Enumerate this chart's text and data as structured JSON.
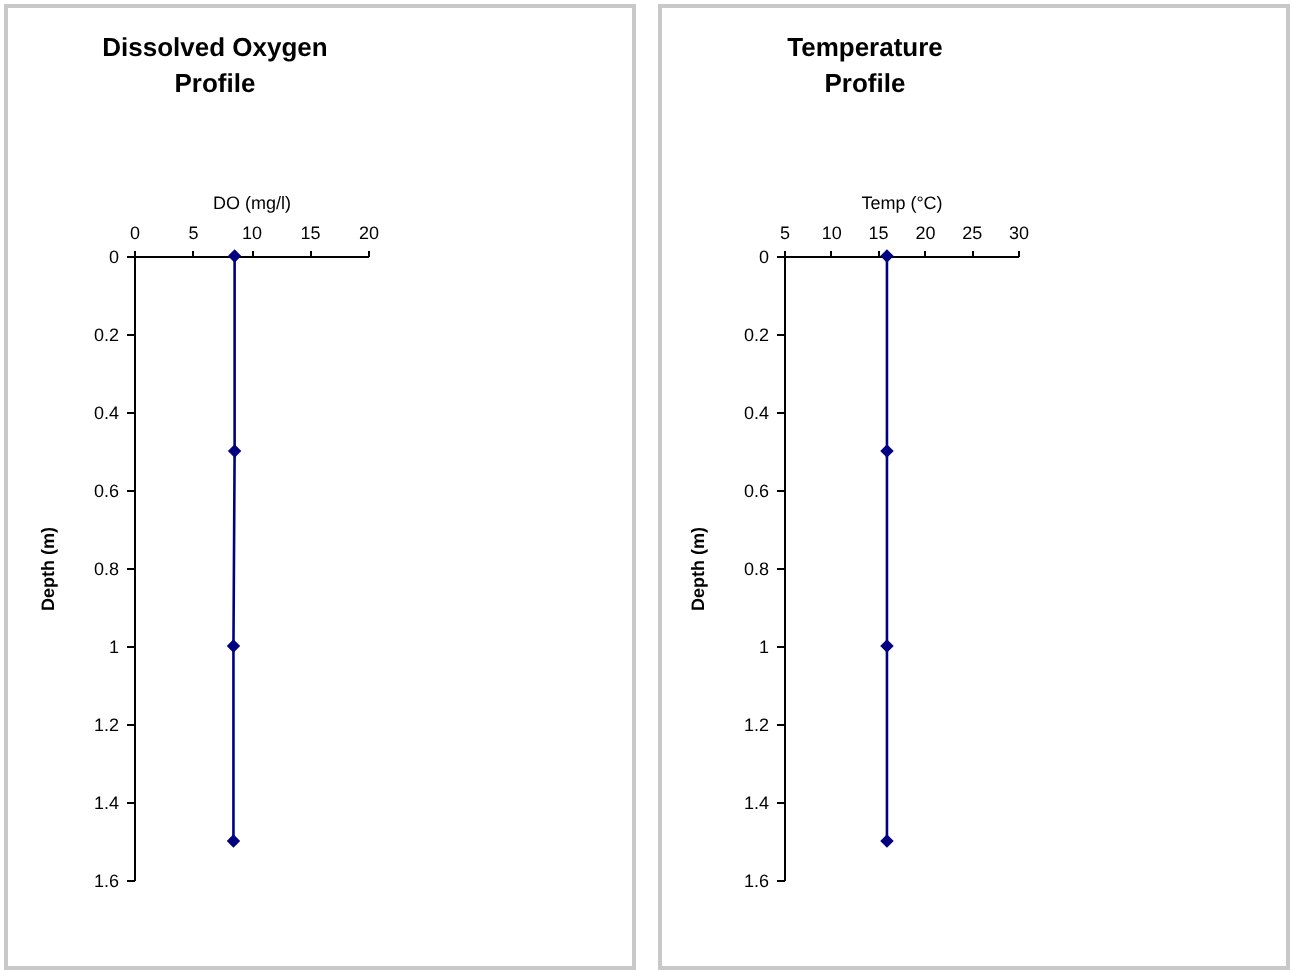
{
  "chart_data": [
    {
      "type": "line",
      "title": "Dissolved Oxygen Profile",
      "xlabel": "DO (mg/l)",
      "ylabel": "Depth (m)",
      "x": [
        8.6,
        8.6,
        8.5,
        8.5
      ],
      "series": [
        {
          "color": "#000080",
          "values": [
            0,
            0.5,
            1,
            1.5
          ]
        }
      ],
      "xlim": [
        0,
        20
      ],
      "xticks": [
        0,
        5,
        10,
        15,
        20
      ],
      "ylim": [
        1.6,
        0
      ],
      "yticks": [
        0,
        0.2,
        0.4,
        0.6,
        0.8,
        1,
        1.2,
        1.4,
        1.6
      ],
      "marker": "diamond"
    },
    {
      "type": "line",
      "title": "Temperature Profile",
      "xlabel": "Temp (°C)",
      "ylabel": "Depth (m)",
      "x": [
        16,
        16,
        16,
        16
      ],
      "series": [
        {
          "color": "#000080",
          "values": [
            0,
            0.5,
            1,
            1.5
          ]
        }
      ],
      "xlim": [
        5,
        30
      ],
      "xticks": [
        5,
        10,
        15,
        20,
        25,
        30
      ],
      "ylim": [
        1.6,
        0
      ],
      "yticks": [
        0,
        0.2,
        0.4,
        0.6,
        0.8,
        1,
        1.2,
        1.4,
        1.6
      ],
      "marker": "diamond"
    }
  ]
}
